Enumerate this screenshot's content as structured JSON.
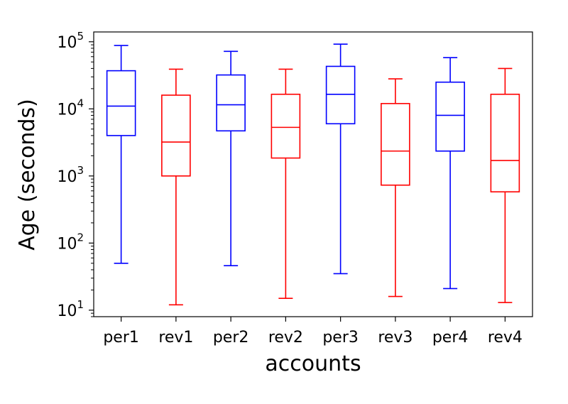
{
  "chart_data": {
    "type": "box",
    "title": "",
    "xlabel": "accounts",
    "ylabel": "Age (seconds)",
    "yscale": "log",
    "ylim": [
      8,
      140000
    ],
    "y_ticks": [
      {
        "value": 10,
        "base": "10",
        "exp": "1"
      },
      {
        "value": 100,
        "base": "10",
        "exp": "2"
      },
      {
        "value": 1000,
        "base": "10",
        "exp": "3"
      },
      {
        "value": 10000,
        "base": "10",
        "exp": "4"
      },
      {
        "value": 100000,
        "base": "10",
        "exp": "5"
      }
    ],
    "categories": [
      "per1",
      "rev1",
      "per2",
      "rev2",
      "per3",
      "rev3",
      "per4",
      "rev4"
    ],
    "colors": {
      "per": "#0000ff",
      "rev": "#ff0000"
    },
    "grid": false,
    "boxes": [
      {
        "label": "per1",
        "color": "#0000ff",
        "whisker_low": 50,
        "q1": 4000,
        "median": 11000,
        "q3": 37000,
        "whisker_high": 88000
      },
      {
        "label": "rev1",
        "color": "#ff0000",
        "whisker_low": 12,
        "q1": 1000,
        "median": 3200,
        "q3": 16000,
        "whisker_high": 39000
      },
      {
        "label": "per2",
        "color": "#0000ff",
        "whisker_low": 46,
        "q1": 4700,
        "median": 11500,
        "q3": 32000,
        "whisker_high": 72000
      },
      {
        "label": "rev2",
        "color": "#ff0000",
        "whisker_low": 15,
        "q1": 1850,
        "median": 5300,
        "q3": 16500,
        "whisker_high": 39000
      },
      {
        "label": "per3",
        "color": "#0000ff",
        "whisker_low": 35,
        "q1": 6000,
        "median": 16500,
        "q3": 43000,
        "whisker_high": 92000
      },
      {
        "label": "rev3",
        "color": "#ff0000",
        "whisker_low": 16,
        "q1": 730,
        "median": 2350,
        "q3": 12000,
        "whisker_high": 28000
      },
      {
        "label": "per4",
        "color": "#0000ff",
        "whisker_low": 21,
        "q1": 2350,
        "median": 8000,
        "q3": 25000,
        "whisker_high": 58000
      },
      {
        "label": "rev4",
        "color": "#ff0000",
        "whisker_low": 13,
        "q1": 580,
        "median": 1700,
        "q3": 16500,
        "whisker_high": 40000
      }
    ]
  }
}
